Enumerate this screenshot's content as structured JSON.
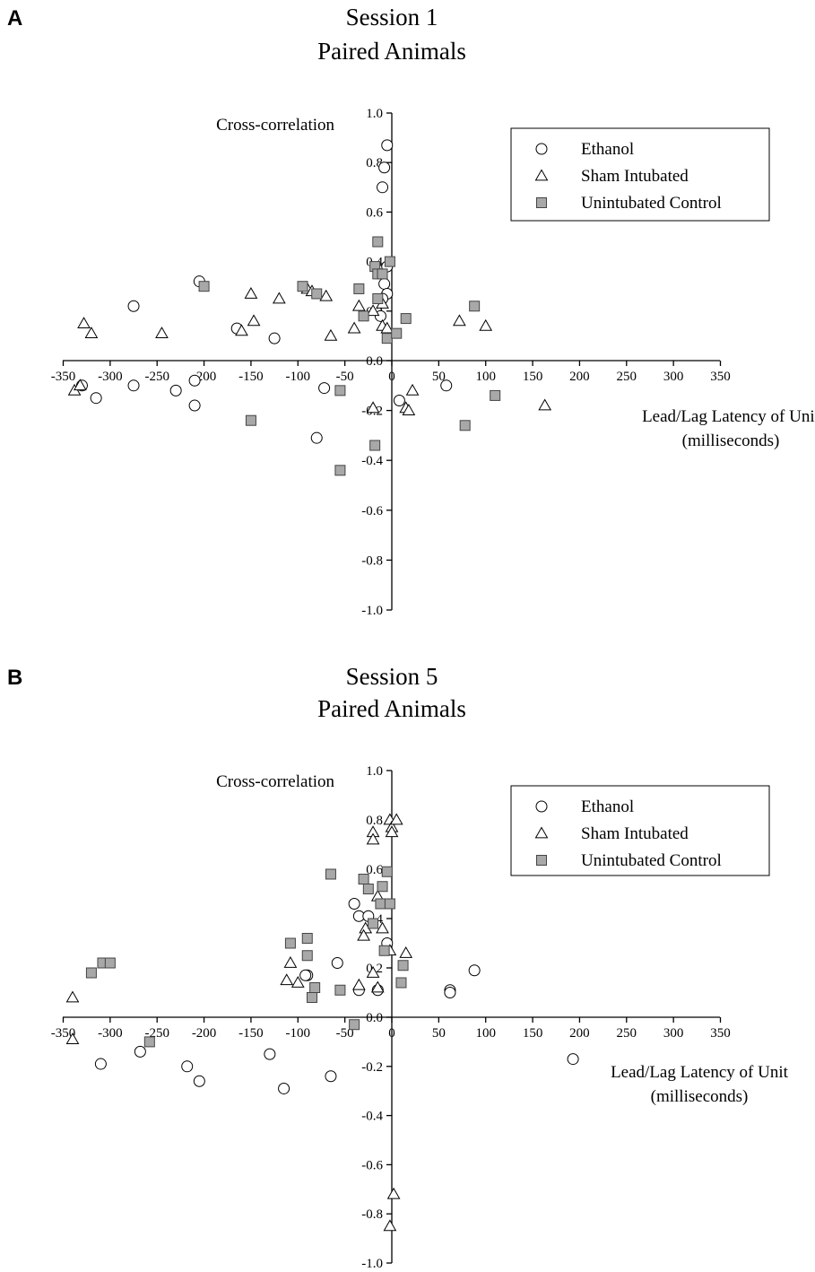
{
  "chart_data": [
    {
      "panel": "A",
      "type": "scatter",
      "title": [
        "Session 1",
        "Paired Animals"
      ],
      "ylabel": "Cross-correlation",
      "xlabel": [
        "Lead/Lag Latency of Unit",
        "(milliseconds)"
      ],
      "xlim": [
        -350,
        350
      ],
      "ylim": [
        -1.0,
        1.0
      ],
      "xticks": [
        -350,
        -300,
        -250,
        -200,
        -150,
        -100,
        -50,
        0,
        50,
        100,
        150,
        200,
        250,
        300,
        350
      ],
      "yticks": [
        -1.0,
        -0.8,
        -0.6,
        -0.4,
        -0.2,
        0.0,
        0.2,
        0.4,
        0.6,
        0.8,
        1.0
      ],
      "grid": false,
      "legend_position": "top-right",
      "series": [
        {
          "name": "Ethanol",
          "marker": "circle",
          "points": [
            [
              -5,
              0.87
            ],
            [
              -8,
              0.78
            ],
            [
              -10,
              0.7
            ],
            [
              -205,
              0.32
            ],
            [
              -275,
              0.22
            ],
            [
              -165,
              0.13
            ],
            [
              -125,
              0.09
            ],
            [
              -5,
              0.38
            ],
            [
              -8,
              0.31
            ],
            [
              -5,
              0.27
            ],
            [
              -10,
              0.25
            ],
            [
              -12,
              0.18
            ],
            [
              -330,
              -0.1
            ],
            [
              -315,
              -0.15
            ],
            [
              -275,
              -0.1
            ],
            [
              -230,
              -0.12
            ],
            [
              -210,
              -0.08
            ],
            [
              -210,
              -0.18
            ],
            [
              -80,
              -0.31
            ],
            [
              -72,
              -0.11
            ],
            [
              8,
              -0.16
            ],
            [
              58,
              -0.1
            ]
          ]
        },
        {
          "name": "Sham Intubated",
          "marker": "triangle",
          "points": [
            [
              -328,
              0.15
            ],
            [
              -320,
              0.11
            ],
            [
              -245,
              0.11
            ],
            [
              -160,
              0.12
            ],
            [
              -147,
              0.16
            ],
            [
              -150,
              0.27
            ],
            [
              -120,
              0.25
            ],
            [
              -90,
              0.29
            ],
            [
              -85,
              0.28
            ],
            [
              -70,
              0.26
            ],
            [
              -65,
              0.1
            ],
            [
              -40,
              0.13
            ],
            [
              -35,
              0.22
            ],
            [
              -20,
              0.2
            ],
            [
              -10,
              0.23
            ],
            [
              -10,
              0.14
            ],
            [
              -5,
              0.13
            ],
            [
              -338,
              -0.12
            ],
            [
              -332,
              -0.1
            ],
            [
              -20,
              -0.19
            ],
            [
              15,
              -0.19
            ],
            [
              18,
              -0.2
            ],
            [
              22,
              -0.12
            ],
            [
              72,
              0.16
            ],
            [
              100,
              0.14
            ],
            [
              163,
              -0.18
            ]
          ]
        },
        {
          "name": "Unintubated Control",
          "marker": "square",
          "points": [
            [
              -15,
              0.48
            ],
            [
              -18,
              0.38
            ],
            [
              -15,
              0.35
            ],
            [
              -2,
              0.4
            ],
            [
              -10,
              0.35
            ],
            [
              -200,
              0.3
            ],
            [
              -95,
              0.3
            ],
            [
              -80,
              0.27
            ],
            [
              -35,
              0.29
            ],
            [
              -30,
              0.18
            ],
            [
              -15,
              0.25
            ],
            [
              -5,
              0.09
            ],
            [
              5,
              0.11
            ],
            [
              15,
              0.17
            ],
            [
              88,
              0.22
            ],
            [
              -150,
              -0.24
            ],
            [
              -55,
              -0.12
            ],
            [
              -55,
              -0.44
            ],
            [
              -18,
              -0.34
            ],
            [
              78,
              -0.26
            ],
            [
              110,
              -0.14
            ]
          ]
        }
      ]
    },
    {
      "panel": "B",
      "type": "scatter",
      "title": [
        "Session 5",
        "Paired Animals"
      ],
      "ylabel": "Cross-correlation",
      "xlabel": [
        "Lead/Lag Latency of Unit",
        "(milliseconds)"
      ],
      "xlim": [
        -350,
        350
      ],
      "ylim": [
        -1.0,
        1.0
      ],
      "xticks": [
        -350,
        -300,
        -250,
        -200,
        -150,
        -100,
        -50,
        0,
        50,
        100,
        150,
        200,
        250,
        300,
        350
      ],
      "yticks": [
        -1.0,
        -0.8,
        -0.6,
        -0.4,
        -0.2,
        0.0,
        0.2,
        0.4,
        0.6,
        0.8,
        1.0
      ],
      "grid": false,
      "legend_position": "top-right",
      "series": [
        {
          "name": "Ethanol",
          "marker": "circle",
          "points": [
            [
              -40,
              0.46
            ],
            [
              -35,
              0.41
            ],
            [
              -25,
              0.41
            ],
            [
              -5,
              0.3
            ],
            [
              -58,
              0.22
            ],
            [
              -90,
              0.17
            ],
            [
              -92,
              0.17
            ],
            [
              -35,
              0.11
            ],
            [
              -15,
              0.11
            ],
            [
              62,
              0.11
            ],
            [
              62,
              0.1
            ],
            [
              88,
              0.19
            ],
            [
              -310,
              -0.19
            ],
            [
              -268,
              -0.14
            ],
            [
              -218,
              -0.2
            ],
            [
              -205,
              -0.26
            ],
            [
              -130,
              -0.15
            ],
            [
              -115,
              -0.29
            ],
            [
              -65,
              -0.24
            ],
            [
              193,
              -0.17
            ]
          ]
        },
        {
          "name": "Sham Intubated",
          "marker": "triangle",
          "points": [
            [
              -20,
              0.75
            ],
            [
              -20,
              0.72
            ],
            [
              -2,
              0.8
            ],
            [
              0,
              0.77
            ],
            [
              0,
              0.75
            ],
            [
              5,
              0.8
            ],
            [
              -15,
              0.49
            ],
            [
              -10,
              0.36
            ],
            [
              -28,
              0.36
            ],
            [
              -30,
              0.33
            ],
            [
              -20,
              0.18
            ],
            [
              -35,
              0.13
            ],
            [
              -112,
              0.15
            ],
            [
              -108,
              0.22
            ],
            [
              -100,
              0.14
            ],
            [
              -15,
              0.12
            ],
            [
              -2,
              0.27
            ],
            [
              15,
              0.26
            ],
            [
              -340,
              0.08
            ],
            [
              -340,
              -0.09
            ],
            [
              2,
              -0.72
            ],
            [
              -2,
              -0.85
            ]
          ]
        },
        {
          "name": "Unintubated Control",
          "marker": "square",
          "points": [
            [
              -65,
              0.58
            ],
            [
              -30,
              0.56
            ],
            [
              -25,
              0.52
            ],
            [
              -5,
              0.59
            ],
            [
              -10,
              0.53
            ],
            [
              -12,
              0.46
            ],
            [
              -2,
              0.46
            ],
            [
              -20,
              0.38
            ],
            [
              -8,
              0.27
            ],
            [
              -90,
              0.32
            ],
            [
              -90,
              0.25
            ],
            [
              -108,
              0.3
            ],
            [
              -320,
              0.18
            ],
            [
              -308,
              0.22
            ],
            [
              -300,
              0.22
            ],
            [
              -82,
              0.12
            ],
            [
              -85,
              0.08
            ],
            [
              -55,
              0.11
            ],
            [
              12,
              0.21
            ],
            [
              10,
              0.14
            ],
            [
              -40,
              -0.03
            ],
            [
              -258,
              -0.1
            ]
          ]
        }
      ]
    }
  ]
}
